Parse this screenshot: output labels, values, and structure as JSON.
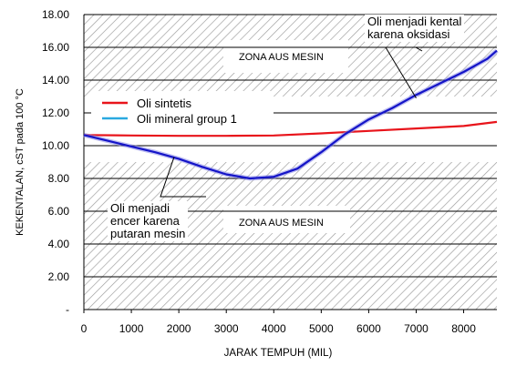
{
  "chart_data": {
    "type": "line",
    "ylabel": "KEKENTALAN, cST  pada 100 °C",
    "xlabel": "JARAK TEMPUH (MIL)",
    "xlim": [
      0,
      8700
    ],
    "ylim": [
      0,
      18
    ],
    "x_ticks": [
      0,
      1000,
      2000,
      3000,
      4000,
      5000,
      6000,
      7000,
      8000
    ],
    "y_ticks": [
      "-",
      "2.00",
      "4.00",
      "6.00",
      "8.00",
      "10.00",
      "12.00",
      "14.00",
      "16.00",
      "18.00"
    ],
    "grid": "horizontal",
    "legend_placement": "left, inside plot",
    "zones": [
      {
        "label": "ZONA AUS MESIN",
        "y_range": [
          13,
          18
        ]
      },
      {
        "label": "ZONA AUS MESIN",
        "y_range": [
          0,
          9
        ]
      }
    ],
    "series": [
      {
        "name": "Oli sintetis",
        "color": "#e8141b",
        "points": [
          [
            0,
            10.65
          ],
          [
            1000,
            10.62
          ],
          [
            2000,
            10.6
          ],
          [
            3000,
            10.6
          ],
          [
            4000,
            10.62
          ],
          [
            5000,
            10.75
          ],
          [
            6000,
            10.9
          ],
          [
            7000,
            11.05
          ],
          [
            8000,
            11.2
          ],
          [
            8700,
            11.45
          ]
        ]
      },
      {
        "name": "Oli mineral group 1",
        "color": "#1414c8",
        "points": [
          [
            0,
            10.65
          ],
          [
            500,
            10.3
          ],
          [
            1000,
            9.95
          ],
          [
            1500,
            9.6
          ],
          [
            2000,
            9.2
          ],
          [
            2500,
            8.7
          ],
          [
            3000,
            8.25
          ],
          [
            3500,
            8.0
          ],
          [
            4000,
            8.1
          ],
          [
            4500,
            8.6
          ],
          [
            5000,
            9.6
          ],
          [
            5500,
            10.7
          ],
          [
            6000,
            11.6
          ],
          [
            6500,
            12.3
          ],
          [
            7000,
            13.1
          ],
          [
            7500,
            13.8
          ],
          [
            8000,
            14.5
          ],
          [
            8500,
            15.3
          ],
          [
            8700,
            15.8
          ]
        ]
      }
    ],
    "annotations": [
      {
        "text": "Oli menjadi kental\nkarena  oksidasi",
        "points_to": [
          7000,
          12.9
        ]
      },
      {
        "text": "Oli menjadi\nencer karena\nputaran mesin",
        "points_to": [
          1900,
          9.3
        ]
      }
    ]
  }
}
